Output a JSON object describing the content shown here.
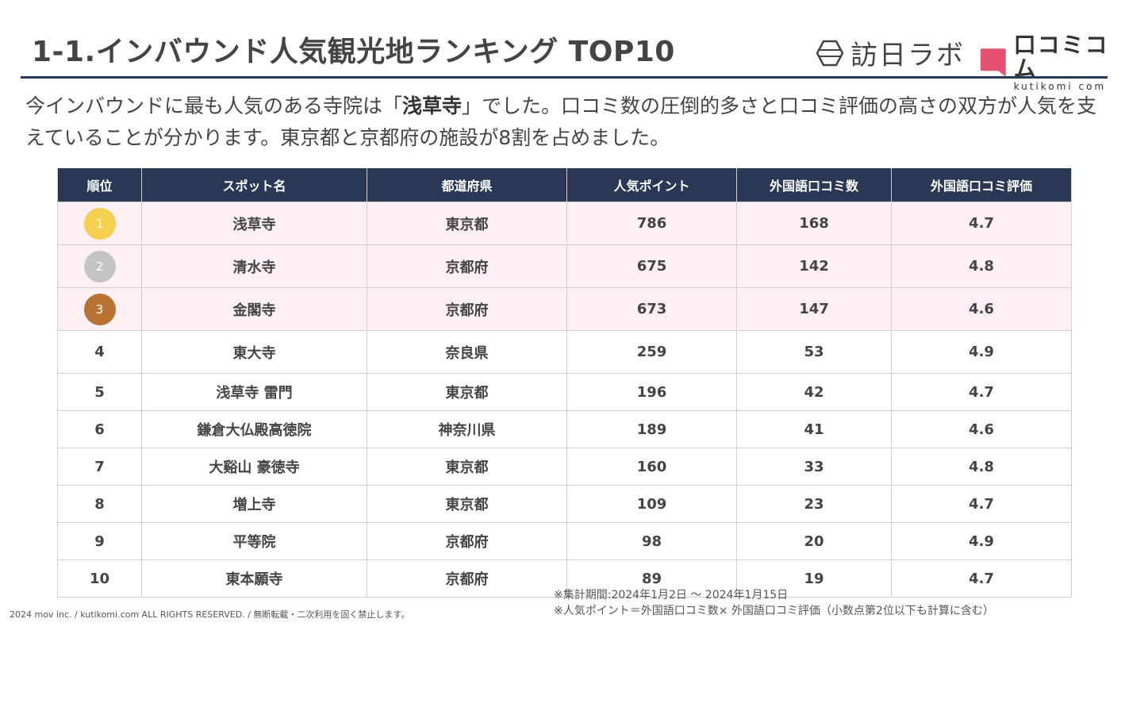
{
  "header": {
    "title": "1-1.インバウンド人気観光地ランキング TOP10",
    "logo_houbichi": "訪日ラボ",
    "logo_kutikomi": "口コミコム",
    "logo_kutikomi_domain": "kutikomi com"
  },
  "lead": {
    "part1": "今インバウンドに最も人気のある寺院は「",
    "highlight": "浅草寺",
    "part2": "」でした。口コミ数の圧倒的多さと口コミ評価の高さの双方が人気を支えていることが分かります。東京都と京都府の施設が8割を占めました。"
  },
  "table": {
    "headers": [
      "順位",
      "スポット名",
      "都道府県",
      "人気ポイント",
      "外国語口コミ数",
      "外国語口コミ評価"
    ],
    "rows": [
      {
        "rank": "1",
        "spot": "浅草寺",
        "pref": "東京都",
        "points": "786",
        "reviews": "168",
        "rating": "4.7"
      },
      {
        "rank": "2",
        "spot": "清水寺",
        "pref": "京都府",
        "points": "675",
        "reviews": "142",
        "rating": "4.8"
      },
      {
        "rank": "3",
        "spot": "金閣寺",
        "pref": "京都府",
        "points": "673",
        "reviews": "147",
        "rating": "4.6"
      },
      {
        "rank": "4",
        "spot": "東大寺",
        "pref": "奈良県",
        "points": "259",
        "reviews": "53",
        "rating": "4.9"
      },
      {
        "rank": "5",
        "spot": "浅草寺 雷門",
        "pref": "東京都",
        "points": "196",
        "reviews": "42",
        "rating": "4.7"
      },
      {
        "rank": "6",
        "spot": "鎌倉大仏殿高徳院",
        "pref": "神奈川県",
        "points": "189",
        "reviews": "41",
        "rating": "4.6"
      },
      {
        "rank": "7",
        "spot": "大谿山 豪徳寺",
        "pref": "東京都",
        "points": "160",
        "reviews": "33",
        "rating": "4.8"
      },
      {
        "rank": "8",
        "spot": "増上寺",
        "pref": "東京都",
        "points": "109",
        "reviews": "23",
        "rating": "4.7"
      },
      {
        "rank": "9",
        "spot": "平等院",
        "pref": "京都府",
        "points": "98",
        "reviews": "20",
        "rating": "4.9"
      },
      {
        "rank": "10",
        "spot": "東本願寺",
        "pref": "京都府",
        "points": "89",
        "reviews": "19",
        "rating": "4.7"
      }
    ]
  },
  "colors": {
    "header_navy": "#2a3855",
    "medal_gold": "#f5d04e",
    "medal_silver": "#c4c4c4",
    "medal_bronze": "#b87333",
    "top_row_bg": "#fdf0f3",
    "kutikomi_pink": "#e5526f"
  },
  "notes": {
    "period": "※集計期間:2024年1月2日 ～ 2024年1月15日",
    "formula": "※人気ポイント＝外国語口コミ数× 外国語口コミ評価（小数点第2位以下も計算に含む）"
  },
  "footer": {
    "copyright": "2024 mov inc. / kutikomi.com ALL RIGHTS RESERVED. / 無断転載・二次利用を固く禁止します。"
  }
}
